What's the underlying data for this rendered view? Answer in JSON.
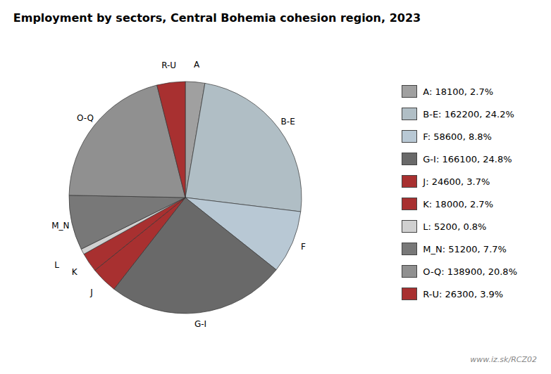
{
  "chart_data": {
    "type": "pie",
    "title": "Employment by sectors, Central Bohemia cohesion region, 2023",
    "categories": [
      "A",
      "B-E",
      "F",
      "G-I",
      "J",
      "K",
      "L",
      "M_N",
      "O-Q",
      "R-U"
    ],
    "values": [
      18100,
      162200,
      58600,
      166100,
      24600,
      18000,
      5200,
      51200,
      138900,
      26300
    ],
    "percentages": [
      2.7,
      24.2,
      8.8,
      24.8,
      3.7,
      2.7,
      0.8,
      7.7,
      20.8,
      3.9
    ],
    "colors": [
      "#a0a0a0",
      "#b0bec5",
      "#b8c8d4",
      "#696969",
      "#a83030",
      "#a83030",
      "#d0d0d0",
      "#787878",
      "#909090",
      "#a83030"
    ],
    "legend_labels": [
      "A: 18100, 2.7%",
      "B-E: 162200, 24.2%",
      "F: 58600, 8.8%",
      "G-I: 166100, 24.8%",
      "J: 24600, 3.7%",
      "K: 18000, 2.7%",
      "L: 5200, 0.8%",
      "M_N: 51200, 7.7%",
      "O-Q: 138900, 20.8%",
      "R-U: 26300, 3.9%"
    ],
    "annotation": "www.iz.sk/RCZ02"
  }
}
